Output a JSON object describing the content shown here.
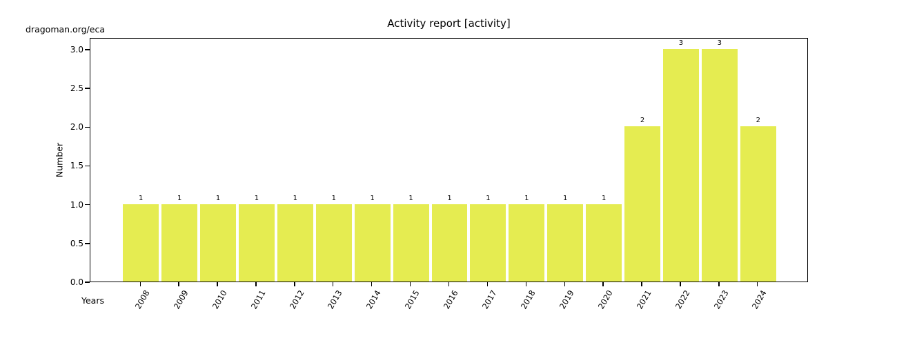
{
  "page": {
    "corner_text": "dragoman.org/eca"
  },
  "chart_data": {
    "type": "bar",
    "title": "Activity report [activity]",
    "xlabel": "Years",
    "ylabel": "Number",
    "categories": [
      "2008",
      "2009",
      "2010",
      "2011",
      "2012",
      "2013",
      "2014",
      "2015",
      "2016",
      "2017",
      "2018",
      "2019",
      "2020",
      "2021",
      "2022",
      "2023",
      "2024"
    ],
    "values": [
      1,
      1,
      1,
      1,
      1,
      1,
      1,
      1,
      1,
      1,
      1,
      1,
      1,
      2,
      3,
      3,
      2
    ],
    "bar_labels": [
      "1",
      "1",
      "1",
      "1",
      "1",
      "1",
      "1",
      "1",
      "1",
      "1",
      "1",
      "1",
      "1",
      "2",
      "3",
      "3",
      "2"
    ],
    "ytick_labels": [
      "0.0",
      "0.5",
      "1.0",
      "1.5",
      "2.0",
      "2.5",
      "3.0"
    ],
    "ytick_values": [
      0,
      0.5,
      1.0,
      1.5,
      2.0,
      2.5,
      3.0
    ],
    "ylim": [
      0,
      3.15
    ],
    "bar_color": "#e5ec51",
    "axis_color": "#000000",
    "grid": false,
    "legend_position": "none",
    "xtick_rotation_deg": 60
  }
}
